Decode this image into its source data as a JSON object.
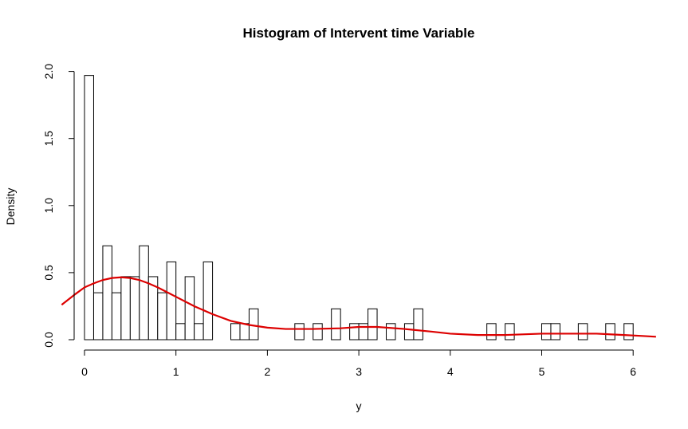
{
  "chart_data": {
    "type": "bar",
    "title": "Histogram of Intervent time Variable",
    "xlabel": "y",
    "ylabel": "Density",
    "xlim": [
      -0.25,
      6.25
    ],
    "ylim": [
      0,
      2.0
    ],
    "x_ticks": [
      0,
      1,
      2,
      3,
      4,
      5,
      6
    ],
    "y_ticks": [
      "0.0",
      "0.5",
      "1.0",
      "1.5",
      "2.0"
    ],
    "bin_width": 0.1,
    "bins": [
      {
        "x0": 0.0,
        "density": 1.97
      },
      {
        "x0": 0.1,
        "density": 0.35
      },
      {
        "x0": 0.2,
        "density": 0.7
      },
      {
        "x0": 0.3,
        "density": 0.35
      },
      {
        "x0": 0.4,
        "density": 0.47
      },
      {
        "x0": 0.5,
        "density": 0.47
      },
      {
        "x0": 0.6,
        "density": 0.7
      },
      {
        "x0": 0.7,
        "density": 0.47
      },
      {
        "x0": 0.8,
        "density": 0.35
      },
      {
        "x0": 0.9,
        "density": 0.58
      },
      {
        "x0": 1.0,
        "density": 0.12
      },
      {
        "x0": 1.1,
        "density": 0.47
      },
      {
        "x0": 1.2,
        "density": 0.12
      },
      {
        "x0": 1.3,
        "density": 0.58
      },
      {
        "x0": 1.6,
        "density": 0.12
      },
      {
        "x0": 1.7,
        "density": 0.12
      },
      {
        "x0": 1.8,
        "density": 0.23
      },
      {
        "x0": 2.3,
        "density": 0.12
      },
      {
        "x0": 2.5,
        "density": 0.12
      },
      {
        "x0": 2.7,
        "density": 0.23
      },
      {
        "x0": 2.9,
        "density": 0.12
      },
      {
        "x0": 3.0,
        "density": 0.12
      },
      {
        "x0": 3.1,
        "density": 0.23
      },
      {
        "x0": 3.3,
        "density": 0.12
      },
      {
        "x0": 3.5,
        "density": 0.12
      },
      {
        "x0": 3.6,
        "density": 0.23
      },
      {
        "x0": 4.4,
        "density": 0.12
      },
      {
        "x0": 4.6,
        "density": 0.12
      },
      {
        "x0": 5.0,
        "density": 0.12
      },
      {
        "x0": 5.1,
        "density": 0.12
      },
      {
        "x0": 5.4,
        "density": 0.12
      },
      {
        "x0": 5.7,
        "density": 0.12
      },
      {
        "x0": 5.9,
        "density": 0.12
      }
    ],
    "density_curve": {
      "color": "#dd0000",
      "x": [
        -0.25,
        -0.1,
        0.0,
        0.1,
        0.2,
        0.3,
        0.4,
        0.5,
        0.6,
        0.7,
        0.8,
        0.9,
        1.0,
        1.2,
        1.4,
        1.6,
        1.8,
        2.0,
        2.2,
        2.5,
        2.8,
        3.0,
        3.2,
        3.5,
        3.8,
        4.0,
        4.3,
        4.6,
        5.0,
        5.3,
        5.6,
        5.9,
        6.1,
        6.25
      ],
      "y": [
        0.26,
        0.34,
        0.39,
        0.42,
        0.445,
        0.46,
        0.465,
        0.46,
        0.445,
        0.42,
        0.39,
        0.355,
        0.32,
        0.25,
        0.19,
        0.14,
        0.11,
        0.09,
        0.08,
        0.08,
        0.085,
        0.095,
        0.095,
        0.08,
        0.06,
        0.045,
        0.035,
        0.035,
        0.045,
        0.045,
        0.045,
        0.035,
        0.028,
        0.022
      ]
    },
    "grid": false,
    "legend": "none"
  }
}
